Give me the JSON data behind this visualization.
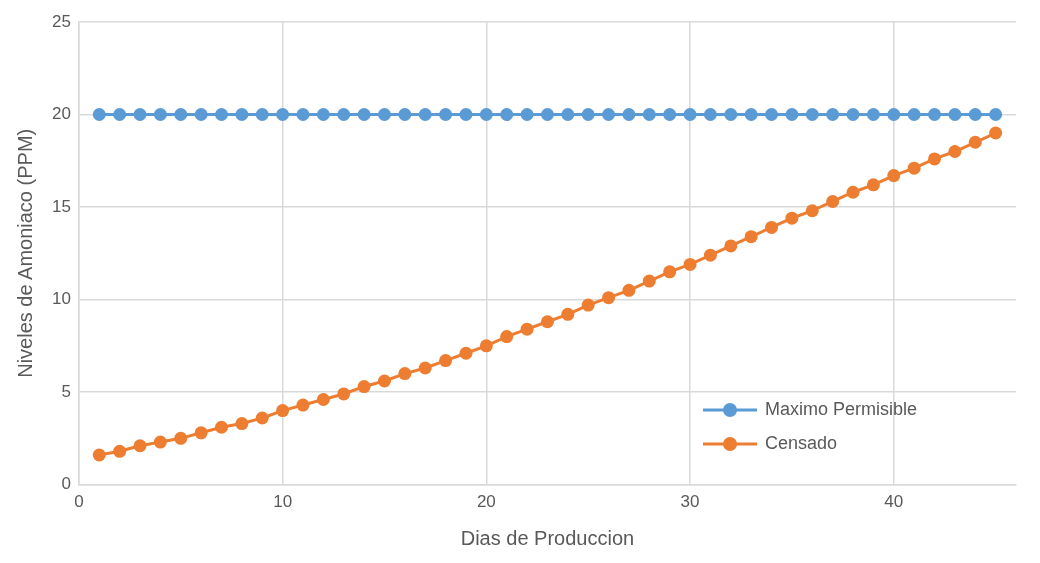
{
  "chart_data": {
    "type": "line",
    "xlabel": "Dias de Produccion",
    "ylabel": "Niveles de Amoniaco (PPM)",
    "x": [
      1,
      2,
      3,
      4,
      5,
      6,
      7,
      8,
      9,
      10,
      11,
      12,
      13,
      14,
      15,
      16,
      17,
      18,
      19,
      20,
      21,
      22,
      23,
      24,
      25,
      26,
      27,
      28,
      29,
      30,
      31,
      32,
      33,
      34,
      35,
      36,
      37,
      38,
      39,
      40,
      41,
      42,
      43,
      44,
      45
    ],
    "series": [
      {
        "name": "Maximo Permisible",
        "color": "#5b9bd5",
        "values": [
          20,
          20,
          20,
          20,
          20,
          20,
          20,
          20,
          20,
          20,
          20,
          20,
          20,
          20,
          20,
          20,
          20,
          20,
          20,
          20,
          20,
          20,
          20,
          20,
          20,
          20,
          20,
          20,
          20,
          20,
          20,
          20,
          20,
          20,
          20,
          20,
          20,
          20,
          20,
          20,
          20,
          20,
          20,
          20,
          20
        ]
      },
      {
        "name": "Censado",
        "color": "#ed7d31",
        "values": [
          1.6,
          1.8,
          2.1,
          2.3,
          2.5,
          2.8,
          3.1,
          3.3,
          3.6,
          4.0,
          4.3,
          4.6,
          4.9,
          5.3,
          5.6,
          6.0,
          6.3,
          6.7,
          7.1,
          7.5,
          8.0,
          8.4,
          8.8,
          9.2,
          9.7,
          10.1,
          10.5,
          11.0,
          11.5,
          11.9,
          12.4,
          12.9,
          13.4,
          13.9,
          14.4,
          14.8,
          15.3,
          15.8,
          16.2,
          16.7,
          17.1,
          17.6,
          18.0,
          18.5,
          19.0
        ]
      }
    ],
    "xlim": [
      0,
      46
    ],
    "xticks": [
      0,
      10,
      20,
      30,
      40
    ],
    "ylim": [
      0,
      25
    ],
    "yticks": [
      0,
      5,
      10,
      15,
      20,
      25
    ],
    "grid": true,
    "legend": "bottom right",
    "marker": "circle",
    "line_style": "solid"
  }
}
